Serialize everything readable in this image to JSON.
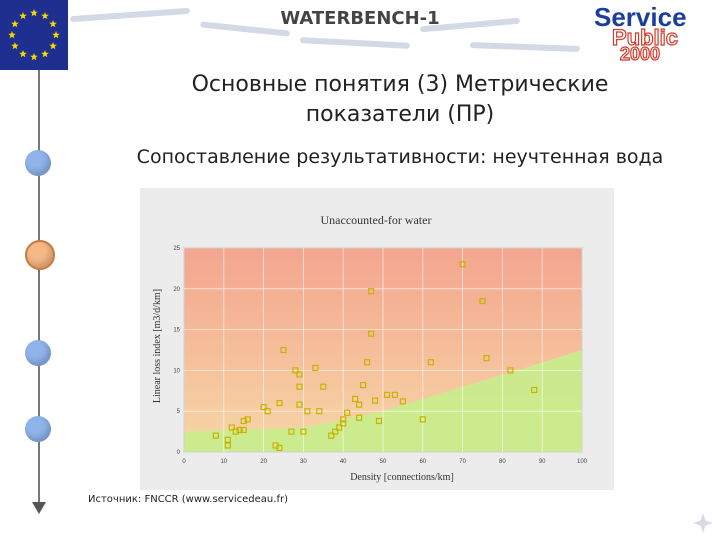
{
  "header": {
    "title": "WATERBENCH-1",
    "logo_line1": "Service",
    "logo_line2": "Public",
    "logo_line3": "2000"
  },
  "slide": {
    "title_line1": "Основные понятия (3)   Метрические",
    "title_line2": "показатели (ПР)",
    "subtitle": "Сопоставление результативности: неучтенная вода",
    "source": "Источник: FNCCR (www.servicedeau.fr)"
  },
  "timeline": {
    "dots": [
      {
        "color": "#8fb3ea",
        "state": "default"
      },
      {
        "color": "#f6b886",
        "state": "current"
      },
      {
        "color": "#8fb3ea",
        "state": "default"
      },
      {
        "color": "#8fb3ea",
        "state": "default"
      }
    ]
  },
  "colors": {
    "flag_blue": "#1f2f8f",
    "flag_star": "#f5d800",
    "zone_red": "#f4a58f",
    "zone_orange": "#f6d7a6",
    "zone_green": "#c9ec8c",
    "marker": "#c8b400"
  },
  "chart_data": {
    "type": "scatter",
    "title": "Unaccounted-for water",
    "xlabel": "Density [connections/km]",
    "ylabel": "Linear loss index [m3/d/km]",
    "xlim": [
      0,
      100
    ],
    "ylim": [
      0,
      25
    ],
    "xticks": [
      "0",
      "10",
      "20",
      "30",
      "40",
      "50",
      "60",
      "70",
      "80",
      "90",
      "100"
    ],
    "yticks": [
      "0",
      "5",
      "10",
      "15",
      "20",
      "25"
    ],
    "grid": true,
    "series": [
      {
        "points": [
          [
            8,
            2
          ],
          [
            11,
            1.5
          ],
          [
            11,
            0.8
          ],
          [
            12,
            3
          ],
          [
            13,
            2.5
          ],
          [
            14,
            2.7
          ],
          [
            15,
            3.8
          ],
          [
            15,
            2.7
          ],
          [
            16,
            4
          ],
          [
            20,
            5.5
          ],
          [
            21,
            5
          ],
          [
            23,
            0.8
          ],
          [
            24,
            6
          ],
          [
            24,
            0.5
          ],
          [
            25,
            12.5
          ],
          [
            27,
            2.5
          ],
          [
            28,
            10
          ],
          [
            29,
            9.5
          ],
          [
            29,
            8
          ],
          [
            29,
            5.8
          ],
          [
            30,
            2.5
          ],
          [
            31,
            5
          ],
          [
            33,
            10.3
          ],
          [
            34,
            5
          ],
          [
            35,
            8
          ],
          [
            37,
            2
          ],
          [
            38,
            2.5
          ],
          [
            39,
            3
          ],
          [
            40,
            3.5
          ],
          [
            40,
            4
          ],
          [
            41,
            4.8
          ],
          [
            43,
            6.5
          ],
          [
            44,
            5.8
          ],
          [
            44,
            4.2
          ],
          [
            45,
            8.2
          ],
          [
            46,
            11
          ],
          [
            47,
            14.5
          ],
          [
            47,
            19.7
          ],
          [
            48,
            6.3
          ],
          [
            49,
            3.8
          ],
          [
            51,
            7
          ],
          [
            53,
            7
          ],
          [
            55,
            6.2
          ],
          [
            60,
            4
          ],
          [
            62,
            11
          ],
          [
            70,
            23
          ],
          [
            75,
            18.5
          ],
          [
            76,
            11.5
          ],
          [
            82,
            10
          ],
          [
            88,
            7.6
          ]
        ]
      }
    ]
  }
}
